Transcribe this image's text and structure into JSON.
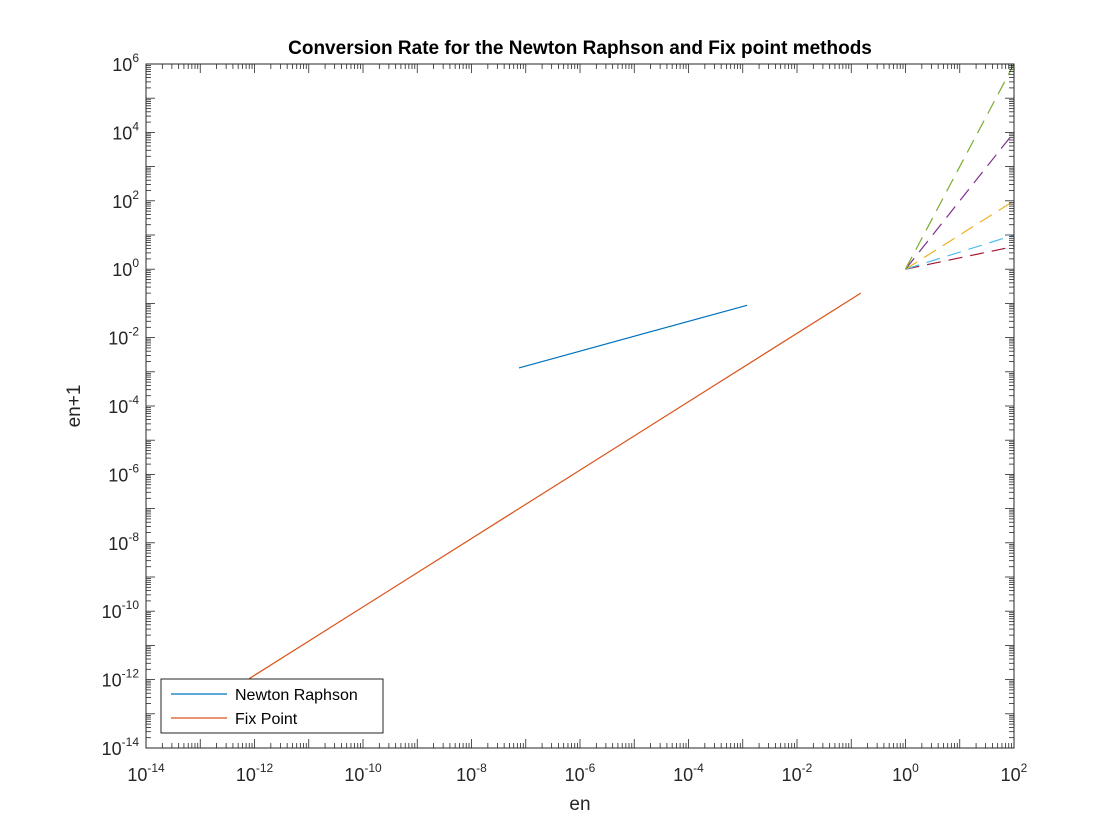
{
  "chart_data": {
    "type": "line",
    "title": "Conversion Rate for the Newton Raphson and Fix point methods",
    "xlabel": "en",
    "ylabel": "en+1",
    "xscale": "log",
    "yscale": "log",
    "xlim": [
      1e-14,
      100
    ],
    "ylim": [
      1e-14,
      1000000
    ],
    "grid": false,
    "legend_position": "bottom-left",
    "xticks": [
      {
        "base": "10",
        "exp": "-14"
      },
      {
        "base": "10",
        "exp": "-12"
      },
      {
        "base": "10",
        "exp": "-10"
      },
      {
        "base": "10",
        "exp": "-8"
      },
      {
        "base": "10",
        "exp": "-6"
      },
      {
        "base": "10",
        "exp": "-4"
      },
      {
        "base": "10",
        "exp": "-2"
      },
      {
        "base": "10",
        "exp": "0"
      },
      {
        "base": "10",
        "exp": "2"
      }
    ],
    "yticks": [
      {
        "base": "10",
        "exp": "-14"
      },
      {
        "base": "10",
        "exp": "-12"
      },
      {
        "base": "10",
        "exp": "-10"
      },
      {
        "base": "10",
        "exp": "-8"
      },
      {
        "base": "10",
        "exp": "-6"
      },
      {
        "base": "10",
        "exp": "-4"
      },
      {
        "base": "10",
        "exp": "-2"
      },
      {
        "base": "10",
        "exp": "0"
      },
      {
        "base": "10",
        "exp": "2"
      },
      {
        "base": "10",
        "exp": "4"
      },
      {
        "base": "10",
        "exp": "6"
      }
    ],
    "series": [
      {
        "name": "Newton Raphson",
        "color": "#0072BD",
        "style": "solid",
        "x": [
          7.5e-08,
          0.0012
        ],
        "y": [
          0.0013,
          0.088
        ]
      },
      {
        "name": "Fix Point",
        "color": "#D95319",
        "style": "solid",
        "x": [
          7.5e-13,
          0.15
        ],
        "y": [
          1e-12,
          0.2
        ]
      },
      {
        "color": "#A2142F",
        "style": "dashed",
        "x": [
          1,
          100
        ],
        "y": [
          1,
          4.6
        ]
      },
      {
        "color": "#4DBEEE",
        "style": "dashed",
        "x": [
          1,
          100
        ],
        "y": [
          1,
          10
        ]
      },
      {
        "color": "#EDB120",
        "style": "dashed",
        "x": [
          1,
          100
        ],
        "y": [
          1,
          100
        ]
      },
      {
        "color": "#7E2F8E",
        "style": "dashed",
        "x": [
          1,
          100
        ],
        "y": [
          1,
          10000
        ]
      },
      {
        "color": "#77AC30",
        "style": "dashed",
        "x": [
          1,
          100
        ],
        "y": [
          1,
          1000000
        ]
      }
    ]
  }
}
